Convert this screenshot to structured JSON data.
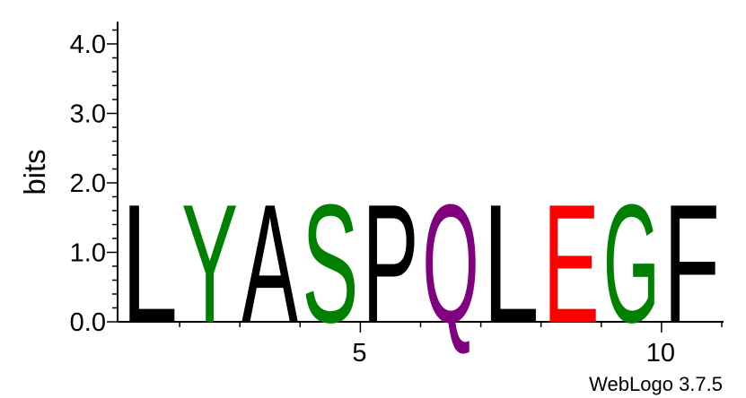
{
  "chart_data": {
    "type": "sequence-logo",
    "ylabel": "bits",
    "ylim": [
      0,
      4.32
    ],
    "y_ticks": [
      "0.0",
      "1.0",
      "2.0",
      "3.0",
      "4.0"
    ],
    "x_ticks": [
      "5",
      "10"
    ],
    "positions": [
      1,
      2,
      3,
      4,
      5,
      6,
      7,
      8,
      9,
      10,
      11
    ],
    "letters": [
      "L",
      "Y",
      "A",
      "S",
      "P",
      "Q",
      "L",
      "E",
      "G",
      "F"
    ],
    "heights": [
      1.75,
      1.75,
      1.75,
      1.75,
      1.75,
      1.75,
      1.75,
      1.75,
      1.75,
      1.75
    ],
    "colors": [
      "#000000",
      "#008000",
      "#000000",
      "#008000",
      "#000000",
      "#800080",
      "#000000",
      "#ff0000",
      "#008000",
      "#000000"
    ],
    "credit": "WebLogo 3.7.5"
  }
}
